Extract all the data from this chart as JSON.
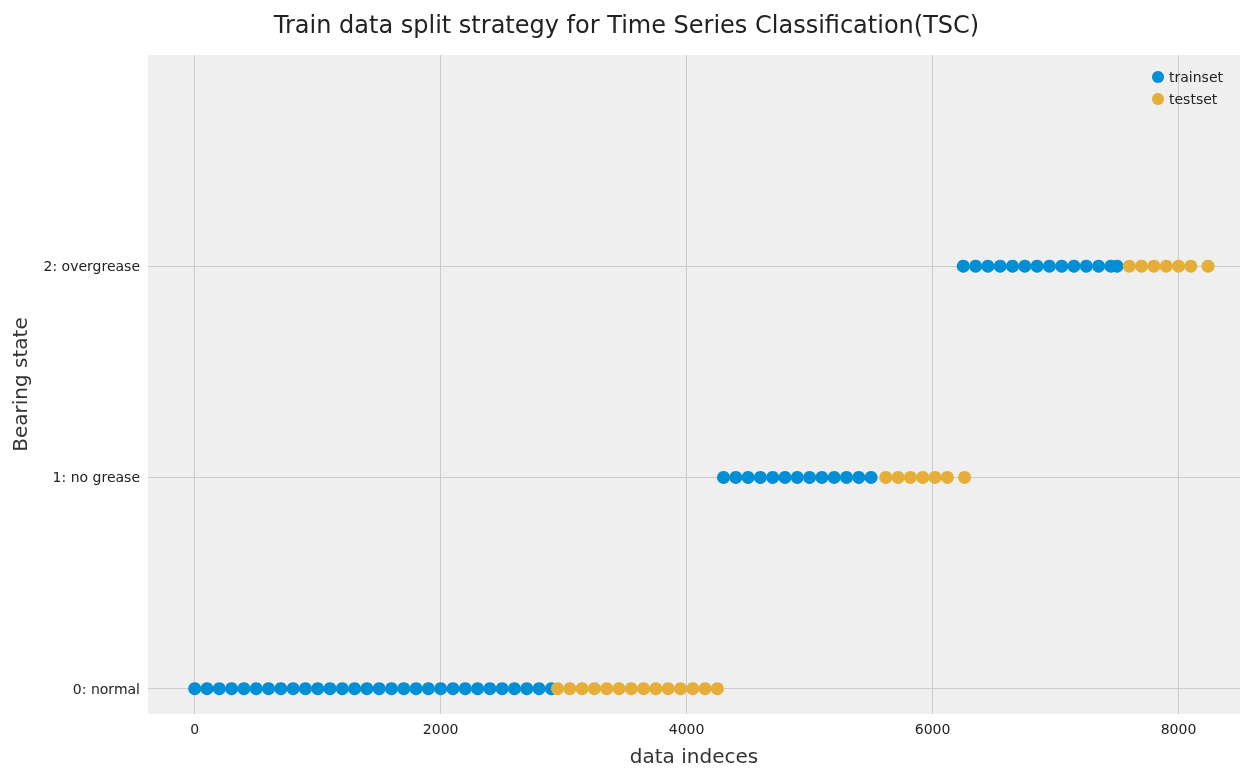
{
  "chart_data": {
    "type": "scatter",
    "title": "Train data split strategy for Time Series Classification(TSC)",
    "xlabel": "data indeces",
    "ylabel": "Bearing state",
    "xlim": [
      -380,
      8500
    ],
    "xticks": [
      0,
      2000,
      4000,
      6000,
      8000
    ],
    "ylim": [
      -0.12,
      3.0
    ],
    "yticks": [
      {
        "value": 0,
        "label": "0: normal"
      },
      {
        "value": 1,
        "label": "1: no grease"
      },
      {
        "value": 2,
        "label": "2: overgrease"
      }
    ],
    "grid": true,
    "legend": "top right",
    "marker": "circle",
    "series": [
      {
        "name": "trainset",
        "color": "#008fd5",
        "x": [
          0,
          100,
          200,
          300,
          400,
          500,
          600,
          700,
          800,
          900,
          1000,
          1100,
          1200,
          1300,
          1400,
          1500,
          1600,
          1700,
          1800,
          1900,
          2000,
          2100,
          2200,
          2300,
          2400,
          2500,
          2600,
          2700,
          2800,
          2900,
          4300,
          4400,
          4500,
          4600,
          4700,
          4800,
          4900,
          5000,
          5100,
          5200,
          5300,
          5400,
          5500,
          6250,
          6350,
          6450,
          6550,
          6650,
          6750,
          6850,
          6950,
          7050,
          7150,
          7250,
          7350,
          7450,
          7500
        ],
        "values": [
          0,
          0,
          0,
          0,
          0,
          0,
          0,
          0,
          0,
          0,
          0,
          0,
          0,
          0,
          0,
          0,
          0,
          0,
          0,
          0,
          0,
          0,
          0,
          0,
          0,
          0,
          0,
          0,
          0,
          0,
          1,
          1,
          1,
          1,
          1,
          1,
          1,
          1,
          1,
          1,
          1,
          1,
          1,
          2,
          2,
          2,
          2,
          2,
          2,
          2,
          2,
          2,
          2,
          2,
          2,
          2,
          2
        ]
      },
      {
        "name": "testset",
        "color": "#e5ae38",
        "x": [
          2950,
          3050,
          3150,
          3250,
          3350,
          3450,
          3550,
          3650,
          3750,
          3850,
          3950,
          4050,
          4150,
          4250,
          5620,
          5720,
          5820,
          5920,
          6020,
          6120,
          6260,
          7600,
          7700,
          7800,
          7900,
          8000,
          8100,
          8240
        ],
        "values": [
          0,
          0,
          0,
          0,
          0,
          0,
          0,
          0,
          0,
          0,
          0,
          0,
          0,
          0,
          1,
          1,
          1,
          1,
          1,
          1,
          1,
          2,
          2,
          2,
          2,
          2,
          2,
          2
        ]
      }
    ]
  }
}
